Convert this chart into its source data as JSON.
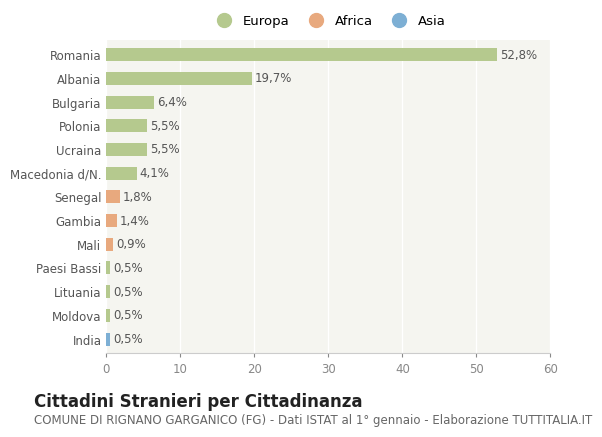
{
  "countries": [
    "Romania",
    "Albania",
    "Bulgaria",
    "Polonia",
    "Ucraina",
    "Macedonia d/N.",
    "Senegal",
    "Gambia",
    "Mali",
    "Paesi Bassi",
    "Lituania",
    "Moldova",
    "India"
  ],
  "values": [
    52.8,
    19.7,
    6.4,
    5.5,
    5.5,
    4.1,
    1.8,
    1.4,
    0.9,
    0.5,
    0.5,
    0.5,
    0.5
  ],
  "labels": [
    "52,8%",
    "19,7%",
    "6,4%",
    "5,5%",
    "5,5%",
    "4,1%",
    "1,8%",
    "1,4%",
    "0,9%",
    "0,5%",
    "0,5%",
    "0,5%",
    "0,5%"
  ],
  "continents": [
    "Europa",
    "Europa",
    "Europa",
    "Europa",
    "Europa",
    "Europa",
    "Africa",
    "Africa",
    "Africa",
    "Europa",
    "Europa",
    "Europa",
    "Asia"
  ],
  "colors": {
    "Europa": "#b5c98e",
    "Africa": "#e8a97e",
    "Asia": "#7dafd4"
  },
  "xlim": [
    0,
    60
  ],
  "xticks": [
    0,
    10,
    20,
    30,
    40,
    50,
    60
  ],
  "background_color": "#ffffff",
  "plot_area_color": "#f5f5f0",
  "title": "Cittadini Stranieri per Cittadinanza",
  "subtitle": "COMUNE DI RIGNANO GARGANICO (FG) - Dati ISTAT al 1° gennaio - Elaborazione TUTTITALIA.IT",
  "title_fontsize": 12,
  "subtitle_fontsize": 8.5,
  "bar_height": 0.55,
  "value_fontsize": 8.5,
  "ytick_fontsize": 8.5,
  "xtick_fontsize": 8.5
}
